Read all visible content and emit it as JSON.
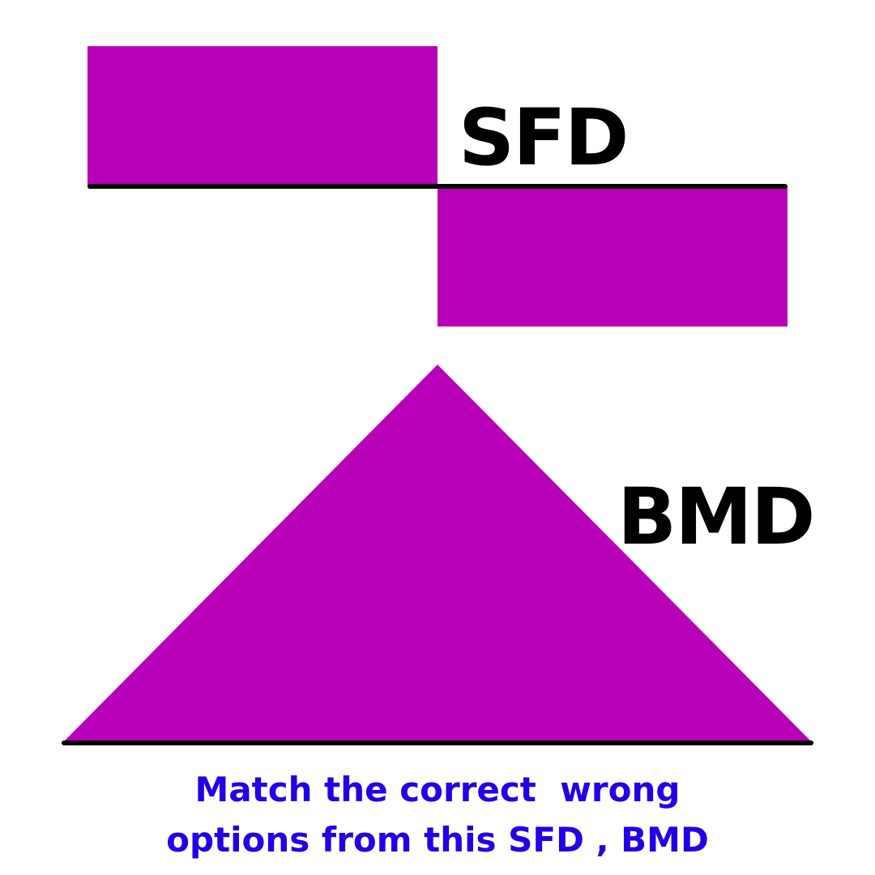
{
  "colors": {
    "diagram_fill": "#b800b8",
    "axis_line": "#000000",
    "label_text": "#000000",
    "caption_text": "#2200e6",
    "background": "#ffffff"
  },
  "labels": {
    "sfd": "SFD",
    "bmd": "BMD"
  },
  "caption": {
    "line1": "Match the correct  wrong",
    "line2": "options from this SFD , BMD"
  }
}
